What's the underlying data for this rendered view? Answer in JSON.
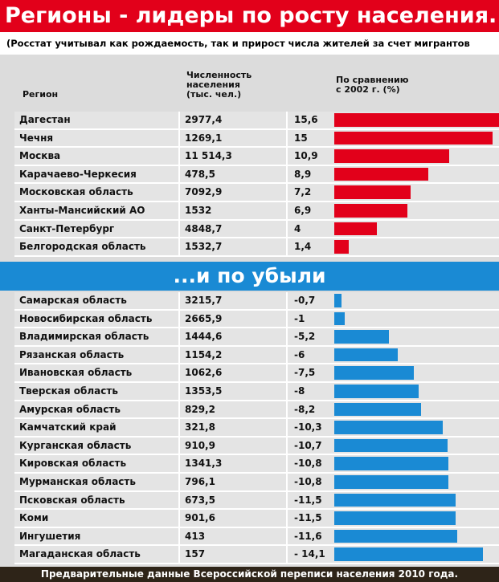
{
  "title": "Регионы - лидеры по росту населения..",
  "subtitle": "(Росстат учитывал как рождаемость, так и прирост числа жителей за счет мигрантов",
  "headers": {
    "region": "Регион",
    "population": "Численность населения (тыс. чел.)",
    "change": "По сравнению с 2002 г. (%)"
  },
  "growth": {
    "rows": [
      {
        "region": "Дагестан",
        "population": "2977,4",
        "change": 15.6,
        "change_label": "15,6"
      },
      {
        "region": "Чечня",
        "population": "1269,1",
        "change": 15,
        "change_label": "15"
      },
      {
        "region": "Москва",
        "population": "11 514,3",
        "change": 10.9,
        "change_label": "10,9"
      },
      {
        "region": "Карачаево-Черкесия",
        "population": "478,5",
        "change": 8.9,
        "change_label": "8,9"
      },
      {
        "region": "Московская область",
        "population": "7092,9",
        "change": 7.2,
        "change_label": "7,2"
      },
      {
        "region": "Ханты-Мансийский АО",
        "population": "1532",
        "change": 6.9,
        "change_label": "6,9"
      },
      {
        "region": "Санкт-Петербург",
        "population": "4848,7",
        "change": 4,
        "change_label": "4"
      },
      {
        "region": "Белгородская область",
        "population": "1532,7",
        "change": 1.4,
        "change_label": "1,4"
      }
    ],
    "color": "#e2001a"
  },
  "decline": {
    "title": "...и по убыли",
    "rows": [
      {
        "region": "Самарская область",
        "population": "3215,7",
        "change": -0.7,
        "change_label": "-0,7"
      },
      {
        "region": "Новосибирская область",
        "population": "2665,9",
        "change": -1,
        "change_label": "-1"
      },
      {
        "region": "Владимирская область",
        "population": "1444,6",
        "change": -5.2,
        "change_label": "-5,2"
      },
      {
        "region": "Рязанская область",
        "population": "1154,2",
        "change": -6,
        "change_label": "-6"
      },
      {
        "region": "Ивановская область",
        "population": "1062,6",
        "change": -7.5,
        "change_label": "-7,5"
      },
      {
        "region": "Тверская область",
        "population": "1353,5",
        "change": -8,
        "change_label": "-8"
      },
      {
        "region": "Амурская область",
        "population": "829,2",
        "change": -8.2,
        "change_label": "-8,2"
      },
      {
        "region": "Камчатский край",
        "population": "321,8",
        "change": -10.3,
        "change_label": "-10,3"
      },
      {
        "region": "Курганская область",
        "population": "910,9",
        "change": -10.7,
        "change_label": "-10,7"
      },
      {
        "region": "Кировская область",
        "population": "1341,3",
        "change": -10.8,
        "change_label": "-10,8"
      },
      {
        "region": "Мурманская область",
        "population": "796,1",
        "change": -10.8,
        "change_label": "-10,8"
      },
      {
        "region": "Псковская область",
        "population": "673,5",
        "change": -11.5,
        "change_label": "-11,5"
      },
      {
        "region": "Коми",
        "population": "901,6",
        "change": -11.5,
        "change_label": "-11,5"
      },
      {
        "region": "Ингушетия",
        "population": "413",
        "change": -11.6,
        "change_label": "-11,6"
      },
      {
        "region": "Магаданская область",
        "population": "157",
        "change": -14.1,
        "change_label": "- 14,1"
      }
    ],
    "color": "#1a8ad4"
  },
  "footer": "Предварительные данные Всероссийской переписи населения 2010 года."
}
